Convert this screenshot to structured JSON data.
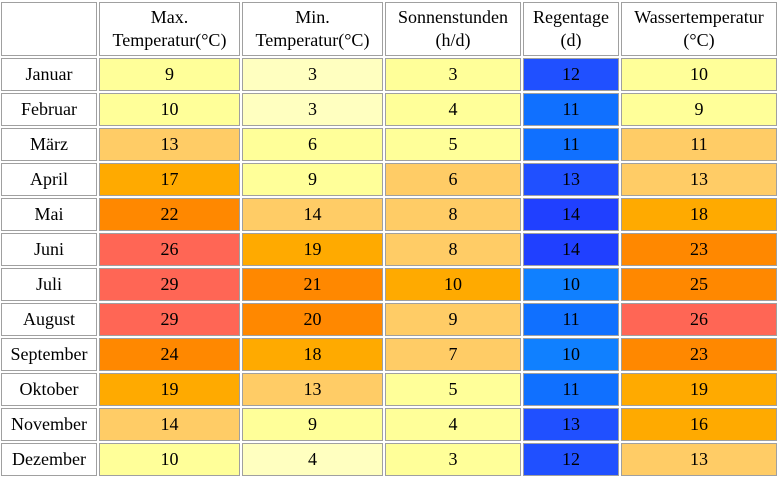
{
  "table": {
    "headers": {
      "max_temp": {
        "line1": "Max.",
        "line2": "Temperatur(°C)"
      },
      "min_temp": {
        "line1": "Min.",
        "line2": "Temperatur(°C)"
      },
      "sunshine": {
        "line1": "Sonnenstunden",
        "line2": "(h/d)"
      },
      "rain_days": {
        "line1": "Regentage",
        "line2": "(d)"
      },
      "water_temp": {
        "line1": "Wassertemperatur",
        "line2": "(°C)"
      }
    },
    "rows": [
      {
        "month": "Januar",
        "max_temp": "9",
        "min_temp": "3",
        "sunshine": "3",
        "rain_days": "12",
        "water_temp": "10"
      },
      {
        "month": "Februar",
        "max_temp": "10",
        "min_temp": "3",
        "sunshine": "4",
        "rain_days": "11",
        "water_temp": "9"
      },
      {
        "month": "März",
        "max_temp": "13",
        "min_temp": "6",
        "sunshine": "5",
        "rain_days": "11",
        "water_temp": "11"
      },
      {
        "month": "April",
        "max_temp": "17",
        "min_temp": "9",
        "sunshine": "6",
        "rain_days": "13",
        "water_temp": "13"
      },
      {
        "month": "Mai",
        "max_temp": "22",
        "min_temp": "14",
        "sunshine": "8",
        "rain_days": "14",
        "water_temp": "18"
      },
      {
        "month": "Juni",
        "max_temp": "26",
        "min_temp": "19",
        "sunshine": "8",
        "rain_days": "14",
        "water_temp": "23"
      },
      {
        "month": "Juli",
        "max_temp": "29",
        "min_temp": "21",
        "sunshine": "10",
        "rain_days": "10",
        "water_temp": "25"
      },
      {
        "month": "August",
        "max_temp": "29",
        "min_temp": "20",
        "sunshine": "9",
        "rain_days": "11",
        "water_temp": "26"
      },
      {
        "month": "September",
        "max_temp": "24",
        "min_temp": "18",
        "sunshine": "7",
        "rain_days": "10",
        "water_temp": "23"
      },
      {
        "month": "Oktober",
        "max_temp": "19",
        "min_temp": "13",
        "sunshine": "5",
        "rain_days": "11",
        "water_temp": "19"
      },
      {
        "month": "November",
        "max_temp": "14",
        "min_temp": "9",
        "sunshine": "4",
        "rain_days": "13",
        "water_temp": "16"
      },
      {
        "month": "Dezember",
        "max_temp": "10",
        "min_temp": "4",
        "sunshine": "3",
        "rain_days": "12",
        "water_temp": "13"
      }
    ],
    "cell_colors": [
      {
        "max_temp": "#ffff99",
        "min_temp": "#ffffc0",
        "sunshine": "#ffff99",
        "rain_days": "#2050ff",
        "water_temp": "#ffff99"
      },
      {
        "max_temp": "#ffff99",
        "min_temp": "#ffffc0",
        "sunshine": "#ffff99",
        "rain_days": "#1070ff",
        "water_temp": "#ffff99"
      },
      {
        "max_temp": "#ffcc66",
        "min_temp": "#ffff99",
        "sunshine": "#ffff99",
        "rain_days": "#1070ff",
        "water_temp": "#ffcc66"
      },
      {
        "max_temp": "#ffaa00",
        "min_temp": "#ffff99",
        "sunshine": "#ffcc66",
        "rain_days": "#2050ff",
        "water_temp": "#ffcc66"
      },
      {
        "max_temp": "#ff8800",
        "min_temp": "#ffcc66",
        "sunshine": "#ffcc66",
        "rain_days": "#2040ff",
        "water_temp": "#ffaa00"
      },
      {
        "max_temp": "#ff6655",
        "min_temp": "#ffaa00",
        "sunshine": "#ffcc66",
        "rain_days": "#2040ff",
        "water_temp": "#ff8800"
      },
      {
        "max_temp": "#ff6655",
        "min_temp": "#ff8800",
        "sunshine": "#ffaa00",
        "rain_days": "#1080ff",
        "water_temp": "#ff8800"
      },
      {
        "max_temp": "#ff6655",
        "min_temp": "#ff8800",
        "sunshine": "#ffcc66",
        "rain_days": "#1070ff",
        "water_temp": "#ff6655"
      },
      {
        "max_temp": "#ff8800",
        "min_temp": "#ffaa00",
        "sunshine": "#ffcc66",
        "rain_days": "#1080ff",
        "water_temp": "#ff8800"
      },
      {
        "max_temp": "#ffaa00",
        "min_temp": "#ffcc66",
        "sunshine": "#ffff99",
        "rain_days": "#1070ff",
        "water_temp": "#ffaa00"
      },
      {
        "max_temp": "#ffcc66",
        "min_temp": "#ffff99",
        "sunshine": "#ffff99",
        "rain_days": "#2050ff",
        "water_temp": "#ffaa00"
      },
      {
        "max_temp": "#ffff99",
        "min_temp": "#ffffc0",
        "sunshine": "#ffff99",
        "rain_days": "#2050ff",
        "water_temp": "#ffcc66"
      }
    ]
  }
}
